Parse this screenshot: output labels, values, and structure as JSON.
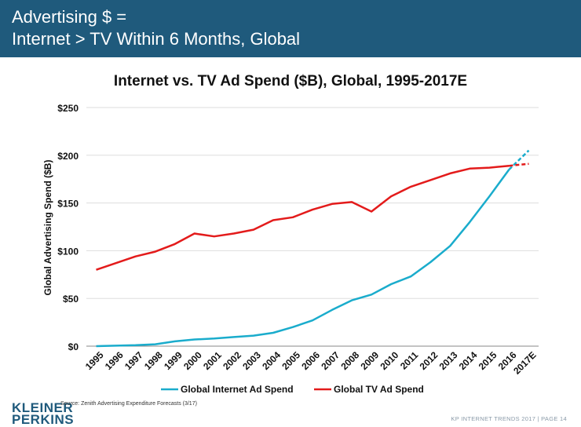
{
  "header": {
    "line1": "Advertising $ =",
    "line2": "Internet > TV Within 6 Months, Global",
    "background": "#1f5a7c"
  },
  "footer": {
    "source": "Source: Zenith Advertising Expenditure Forecasts (3/17)",
    "page": "KP INTERNET TRENDS 2017  |  PAGE 14",
    "logo_line1": "KLEINER",
    "logo_line2": "PERKINS"
  },
  "chart_data": {
    "type": "line",
    "title": "Internet vs. TV Ad Spend ($B), Global, 1995-2017E",
    "ylabel": "Global Advertising Spend ($B)",
    "xlabel": "",
    "categories": [
      "1995",
      "1996",
      "1997",
      "1998",
      "1999",
      "2000",
      "2001",
      "2002",
      "2003",
      "2004",
      "2005",
      "2006",
      "2007",
      "2008",
      "2009",
      "2010",
      "2011",
      "2012",
      "2013",
      "2014",
      "2015",
      "2016",
      "2017E"
    ],
    "yticks": [
      "$0",
      "$50",
      "$100",
      "$150",
      "$200",
      "$250"
    ],
    "ylim": [
      0,
      250
    ],
    "grid": true,
    "legend_position": "bottom",
    "estimate_from": "2016",
    "series": [
      {
        "name": "Global Internet Ad Spend",
        "color": "#1aaccc",
        "values": [
          0,
          0.5,
          1,
          2,
          5,
          7,
          8,
          9.5,
          11,
          14,
          20,
          27,
          38,
          48,
          54,
          65,
          73,
          88,
          105,
          130,
          157,
          185,
          205
        ]
      },
      {
        "name": "Global TV Ad Spend",
        "color": "#e31b1b",
        "values": [
          80,
          87,
          94,
          99,
          107,
          118,
          115,
          118,
          122,
          132,
          135,
          143,
          149,
          151,
          141,
          157,
          167,
          174,
          181,
          186,
          187,
          189,
          191
        ]
      }
    ]
  }
}
